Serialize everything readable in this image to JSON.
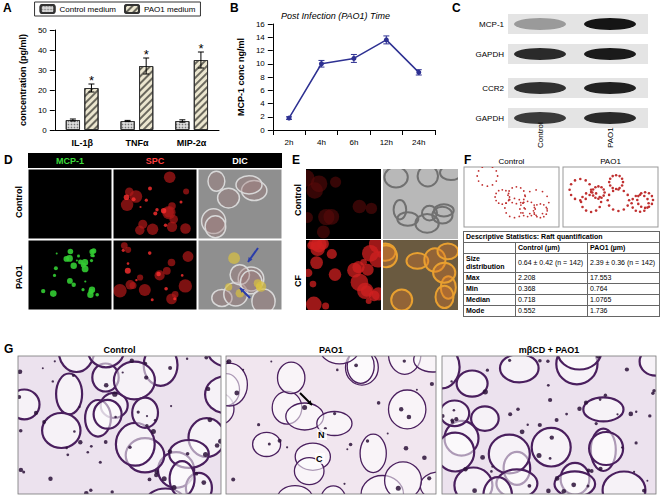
{
  "chart_data": [
    {
      "type": "bar",
      "label": "A",
      "ylabel": "concentration (pg/ml)",
      "categories": [
        "IL-1β",
        "TNFα",
        "MIP-2α"
      ],
      "series": [
        {
          "name": "Control medium",
          "color": "#d9d9d9",
          "values": [
            5,
            4.5,
            4.5
          ],
          "errors": [
            0.5,
            0.3,
            0.6
          ]
        },
        {
          "name": "PAO1 medium",
          "color": "#ebe6cf",
          "values": [
            21,
            32,
            35
          ],
          "errors": [
            2,
            4,
            4
          ],
          "annotations": [
            "*",
            "*",
            "*"
          ]
        }
      ],
      "ylim": [
        0,
        50
      ],
      "yticks": [
        0,
        10,
        20,
        30,
        40,
        50
      ],
      "legend": "top",
      "grid": false
    },
    {
      "type": "line",
      "label": "B",
      "title": "Post Infection (PAO1) Time",
      "ylabel": "MCP-1 conc ng/ml",
      "categories": [
        "2h",
        "4h",
        "6h",
        "12h",
        "24h"
      ],
      "series": [
        {
          "name": "MCP-1",
          "color": "#2e3192",
          "marker": "circle",
          "line_style": "solid",
          "values": [
            1.8,
            10,
            10.8,
            13.6,
            8.7
          ],
          "errors": [
            0.2,
            0.5,
            0.6,
            0.6,
            0.4
          ]
        }
      ],
      "ylim": [
        0,
        16
      ],
      "yticks": [
        0,
        2,
        4,
        6,
        8,
        10,
        12,
        14,
        16
      ],
      "grid": false
    }
  ],
  "panel_c": {
    "label": "C",
    "bands": [
      "MCP-1",
      "GAPDH",
      "CCR2",
      "GAPDH"
    ],
    "lanes": [
      "Control",
      "PAO1"
    ]
  },
  "panel_d": {
    "label": "D",
    "columns": [
      "MCP-1",
      "SPC",
      "DIC"
    ],
    "rows": [
      "Control",
      "PAO1"
    ]
  },
  "panel_e": {
    "label": "E",
    "rows": [
      "Control",
      "CF"
    ]
  },
  "panel_f": {
    "label": "F",
    "images": [
      "Control",
      "PAO1"
    ],
    "table": {
      "title": "Descriptive Statistics: Raft quantification",
      "header": [
        "Control (µm)",
        "PAO1 (µm)"
      ],
      "rows": [
        [
          "Size distribution",
          "0.64 ± 0.42 (n = 142)",
          "2.39 ± 0.36 (n = 142)"
        ],
        [
          "Max",
          "2.208",
          "17.553"
        ],
        [
          "Min",
          "0.368",
          "0.764"
        ],
        [
          "Median",
          "0.718",
          "1.0765"
        ],
        [
          "Mode",
          "0.552",
          "1.736"
        ]
      ]
    }
  },
  "panel_g": {
    "label": "G",
    "images": [
      "Control",
      "PAO1",
      "mβCD + PAO1"
    ],
    "markers": [
      "N",
      "C"
    ]
  }
}
